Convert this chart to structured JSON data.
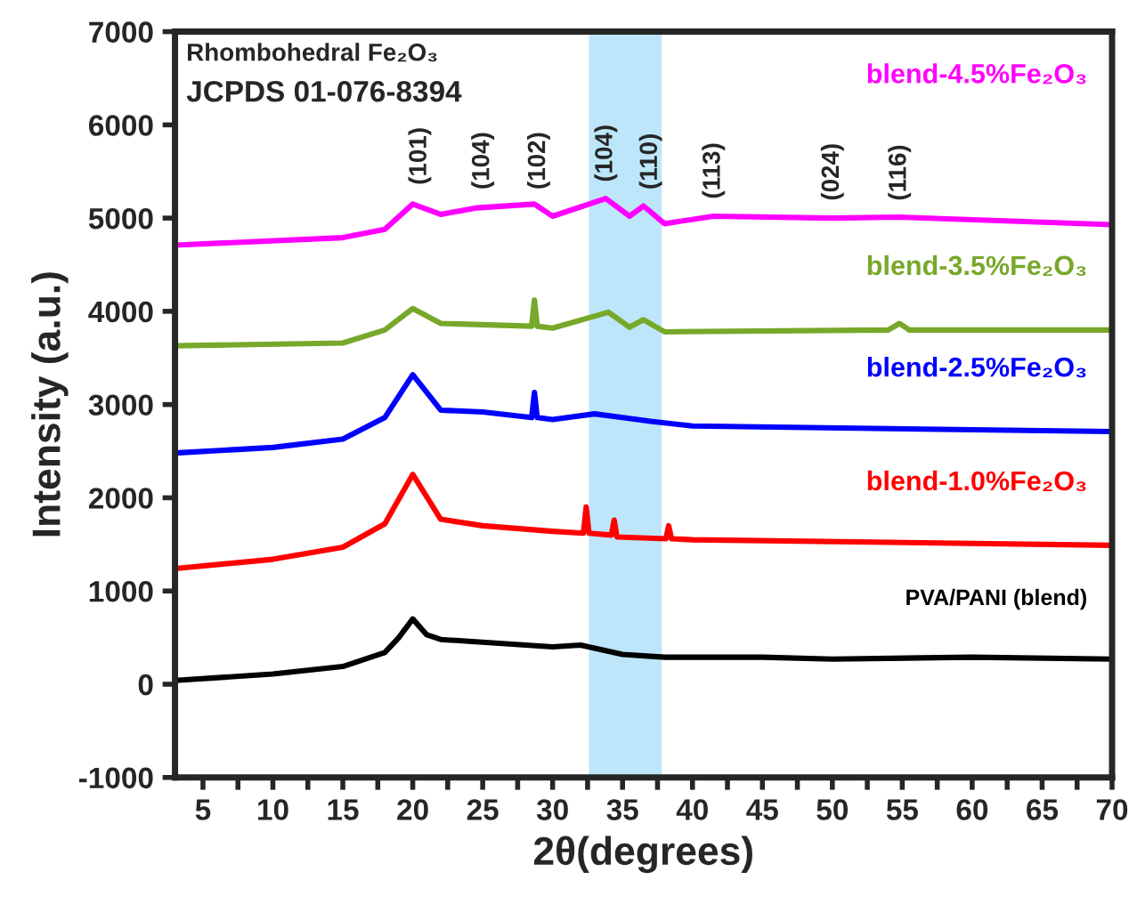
{
  "chart_data": {
    "type": "line",
    "xlabel": "2θ(degrees)",
    "ylabel": "Intensity (a.u.)",
    "xlim": [
      3,
      70
    ],
    "ylim": [
      -1000,
      7000
    ],
    "xticks": [
      5,
      {
        "value": 7.5,
        "label": null
      },
      10,
      {
        "value": 12.5,
        "label": null
      },
      15,
      {
        "value": 17.5,
        "label": null
      },
      20,
      {
        "value": 22.5,
        "label": null
      },
      25,
      {
        "value": 27.5,
        "label": null
      },
      30,
      {
        "value": 32.5,
        "label": null
      },
      35,
      {
        "value": 37.5,
        "label": null
      },
      40,
      {
        "value": 42.5,
        "label": null
      },
      45,
      {
        "value": 47.5,
        "label": null
      },
      50,
      {
        "value": 52.5,
        "label": null
      },
      55,
      {
        "value": 57.5,
        "label": null
      },
      60,
      {
        "value": 62.5,
        "label": null
      },
      65,
      {
        "value": 67.5,
        "label": null
      },
      70
    ],
    "yticks": [
      -1000,
      0,
      1000,
      2000,
      3000,
      4000,
      5000,
      6000,
      7000
    ],
    "grid": false,
    "legend": false,
    "marker": "none",
    "line_style": "solid",
    "bands": [
      {
        "axis": "x",
        "from": 32.6,
        "to": 37.8,
        "color": "#bde6fa"
      }
    ],
    "series": [
      {
        "name": "PVA/PANI (blend)",
        "color": "#000000",
        "x": [
          3,
          10,
          15,
          18,
          19,
          20,
          21,
          22,
          30,
          32,
          35,
          38,
          45,
          50,
          60,
          70
        ],
        "values": [
          40,
          110,
          190,
          340,
          500,
          700,
          530,
          480,
          400,
          420,
          320,
          290,
          290,
          270,
          290,
          270
        ]
      },
      {
        "name": "blend-1.0%Fe₂O₃",
        "color": "#ff0000",
        "x": [
          3,
          10,
          15,
          18,
          20,
          22,
          25,
          30,
          32.2,
          32.4,
          32.6,
          34.2,
          34.4,
          34.6,
          38.1,
          38.3,
          38.5,
          40,
          70
        ],
        "values": [
          1240,
          1340,
          1470,
          1720,
          2250,
          1770,
          1700,
          1640,
          1620,
          1900,
          1620,
          1600,
          1760,
          1580,
          1560,
          1700,
          1560,
          1550,
          1490
        ]
      },
      {
        "name": "blend-2.5%Fe₂O₃",
        "color": "#0000ff",
        "x": [
          3,
          10,
          15,
          18,
          20,
          22,
          25,
          28.5,
          28.7,
          28.9,
          30,
          33,
          35,
          37,
          40,
          70
        ],
        "values": [
          2480,
          2540,
          2630,
          2860,
          3320,
          2940,
          2920,
          2860,
          3130,
          2860,
          2840,
          2900,
          2860,
          2820,
          2770,
          2710
        ]
      },
      {
        "name": "blend-3.5%Fe₂O₃",
        "color": "#77a82a",
        "x": [
          3,
          15,
          18,
          20,
          22,
          28.5,
          28.7,
          28.9,
          30,
          34,
          35.5,
          36.5,
          38,
          54,
          54.8,
          55.5,
          70
        ],
        "values": [
          3630,
          3660,
          3800,
          4030,
          3870,
          3840,
          4120,
          3840,
          3820,
          3990,
          3830,
          3910,
          3780,
          3800,
          3870,
          3800,
          3800
        ]
      },
      {
        "name": "blend-4.5%Fe₂O₃",
        "color": "#ff00ff",
        "x": [
          3,
          15,
          18,
          20,
          22,
          24.6,
          28.7,
          30,
          33.8,
          35.5,
          36.5,
          38,
          41.5,
          50,
          54.8,
          70
        ],
        "values": [
          4710,
          4790,
          4880,
          5150,
          5040,
          5110,
          5150,
          5020,
          5210,
          5020,
          5130,
          4940,
          5020,
          5000,
          5010,
          4930
        ]
      }
    ],
    "annotations": [
      "Rhombohedral Fe₂O₃",
      "JCPDS 01-076-8394",
      {
        "text": "(101)",
        "x": 20.5,
        "y": 5250
      },
      {
        "text": "(104)",
        "x": 25,
        "y": 5200
      },
      {
        "text": "(102)",
        "x": 29,
        "y": 5200
      },
      {
        "text": "(104)",
        "x": 33.8,
        "y": 5280
      },
      {
        "text": "(110)",
        "x": 37,
        "y": 5200
      },
      {
        "text": "(113)",
        "x": 41.5,
        "y": 5100
      },
      {
        "text": "(024)",
        "x": 50,
        "y": 5080
      },
      {
        "text": "(116)",
        "x": 54.8,
        "y": 5080
      }
    ]
  }
}
